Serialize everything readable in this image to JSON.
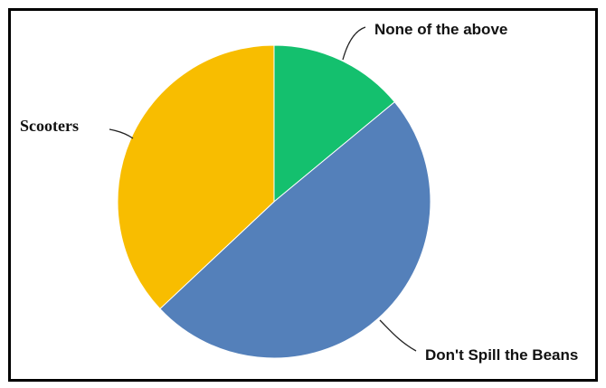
{
  "chart_data": {
    "type": "pie",
    "start_angle_deg": 0,
    "direction": "clockwise",
    "slices": [
      {
        "label": "None of the above",
        "value": 14,
        "color": "#14c06e"
      },
      {
        "label": "Don't Spill the Beans",
        "value": 49,
        "color": "#5480ba"
      },
      {
        "label": "Scooters",
        "value": 37,
        "color": "#f8bd00"
      }
    ]
  }
}
